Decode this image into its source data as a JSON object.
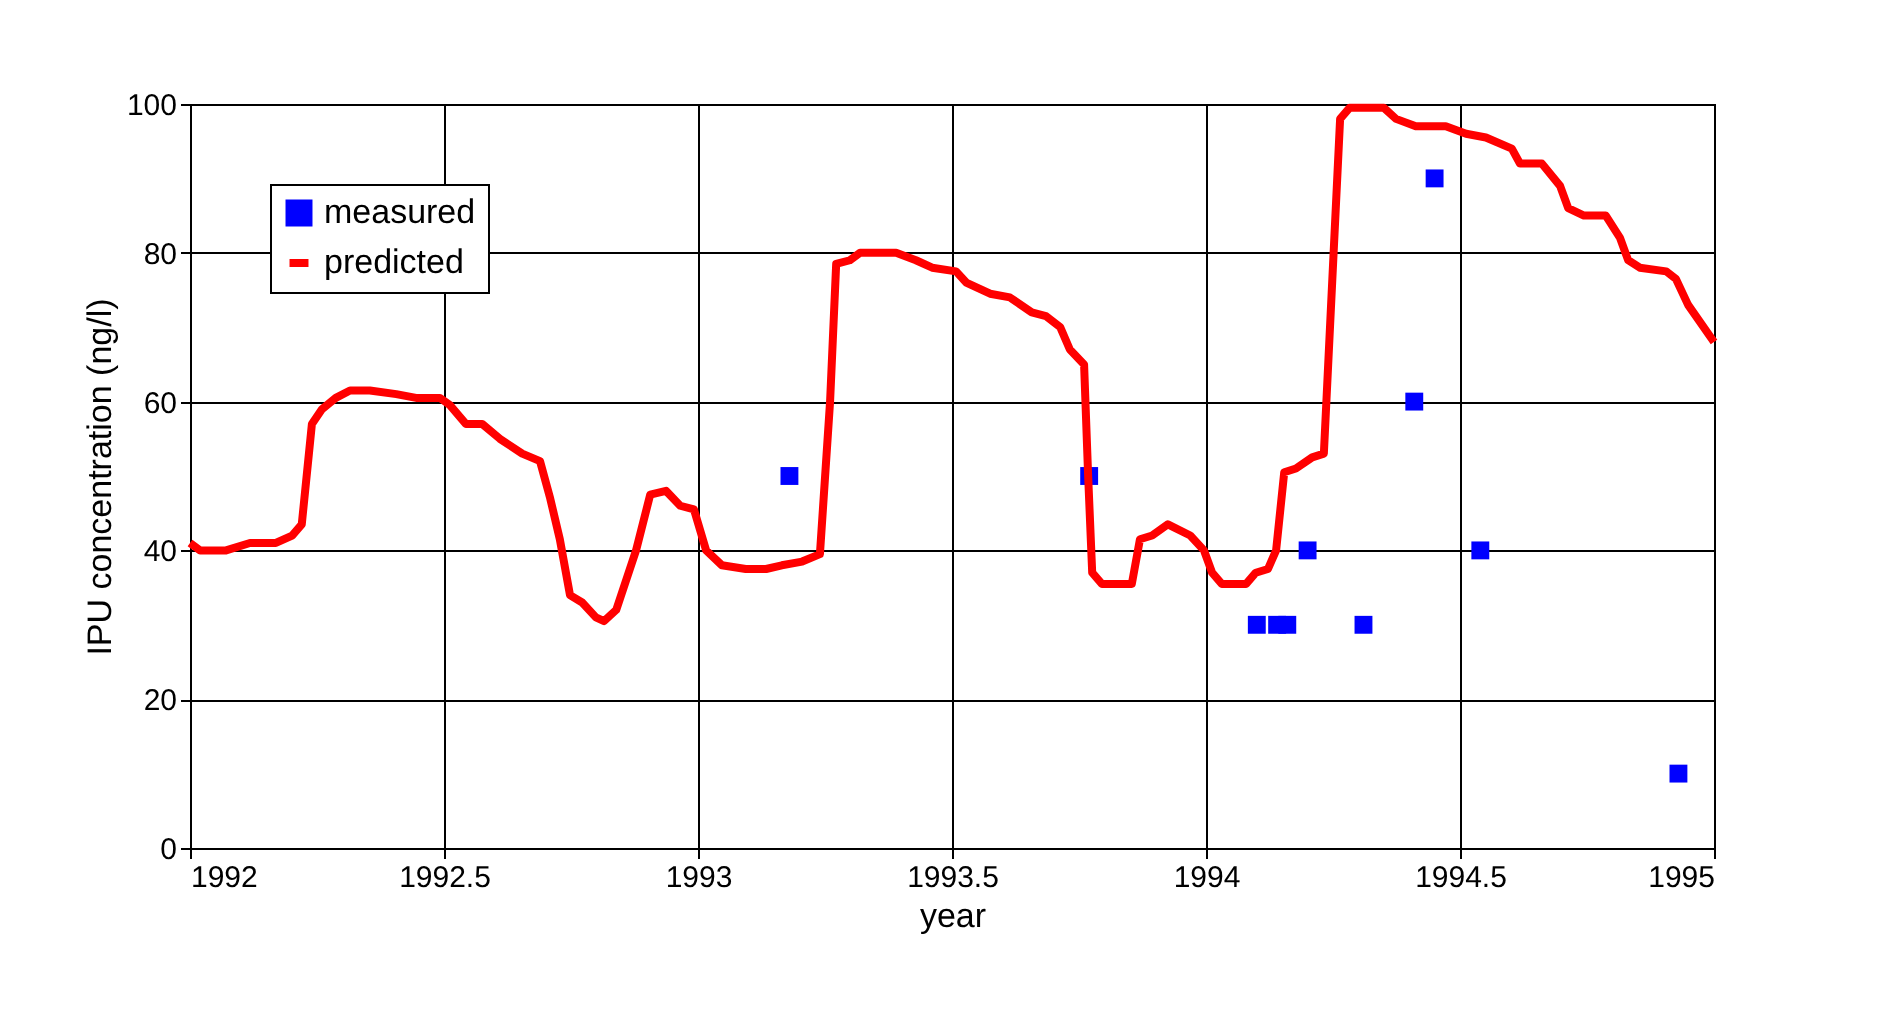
{
  "chart_data": {
    "type": "line",
    "xlabel": "year",
    "ylabel": "IPU concentration (ng/l)",
    "xlim": [
      1992,
      1995
    ],
    "xticks": [
      1992,
      1992.5,
      1993,
      1993.5,
      1994,
      1994.5,
      1995
    ],
    "ylim": [
      0,
      100
    ],
    "yticks": [
      0,
      20,
      40,
      60,
      80,
      100
    ],
    "grid": true,
    "legend": "top left",
    "series": [
      {
        "name": "measured",
        "type": "scatter",
        "marker": "square",
        "color": "#0000ff",
        "x": [
          1993.18,
          1993.77,
          1994.1,
          1994.14,
          1994.16,
          1994.2,
          1994.31,
          1994.41,
          1994.45,
          1994.54,
          1994.93
        ],
        "values": [
          50,
          50,
          30,
          30,
          30,
          40,
          30,
          60,
          90,
          40,
          10
        ]
      },
      {
        "name": "predicted",
        "marker": "none",
        "color": "#ff0000",
        "x": [
          1992.0,
          1992.02,
          1992.071,
          1992.118,
          1992.169,
          1992.201,
          1992.22,
          1992.24,
          1992.26,
          1992.287,
          1992.315,
          1992.354,
          1992.406,
          1992.445,
          1992.492,
          1992.512,
          1992.543,
          1992.575,
          1992.61,
          1992.654,
          1992.689,
          1992.709,
          1992.728,
          1992.748,
          1992.772,
          1992.799,
          1992.815,
          1992.839,
          1992.878,
          1992.906,
          1992.937,
          1992.965,
          1992.992,
          1993.016,
          1993.047,
          1993.094,
          1993.134,
          1993.165,
          1993.205,
          1993.24,
          1993.26,
          1993.272,
          1993.299,
          1993.319,
          1993.39,
          1993.429,
          1993.461,
          1993.508,
          1993.528,
          1993.575,
          1993.614,
          1993.657,
          1993.685,
          1993.713,
          1993.732,
          1993.76,
          1993.768,
          1993.776,
          1993.795,
          1993.854,
          1993.87,
          1993.894,
          1993.925,
          1993.969,
          1993.996,
          1994.012,
          1994.031,
          1994.079,
          1994.098,
          1994.122,
          1994.138,
          1994.154,
          1994.177,
          1994.209,
          1994.232,
          1994.264,
          1994.283,
          1994.35,
          1994.374,
          1994.413,
          1994.472,
          1994.512,
          1994.551,
          1994.602,
          1994.618,
          1994.661,
          1994.697,
          1994.713,
          1994.744,
          1994.787,
          1994.815,
          1994.831,
          1994.854,
          1994.906,
          1994.925,
          1994.949,
          1995.0
        ],
        "values": [
          41,
          40,
          40,
          41,
          41,
          42,
          43.5,
          57,
          59,
          60.5,
          61.5,
          61.5,
          61,
          60.5,
          60.5,
          59.5,
          57,
          57,
          55,
          53,
          52,
          47,
          41.5,
          34,
          33,
          31,
          30.5,
          32,
          40,
          47.5,
          48,
          46,
          45.5,
          40,
          38,
          37.5,
          37.5,
          38,
          38.5,
          39.5,
          60,
          78.5,
          79,
          80,
          80,
          79,
          78,
          77.5,
          76,
          74.5,
          74,
          72,
          71.5,
          70,
          67,
          65,
          50,
          37,
          35.5,
          35.5,
          41.5,
          42,
          43.5,
          42,
          40,
          37,
          35.5,
          35.5,
          37,
          37.5,
          40,
          50.5,
          51,
          52.5,
          53,
          98,
          99.5,
          99.5,
          98,
          97,
          97,
          96,
          95.5,
          94,
          92,
          92,
          89,
          86,
          85,
          85,
          82,
          79,
          78,
          77.5,
          76.5,
          73,
          68
        ]
      }
    ]
  }
}
